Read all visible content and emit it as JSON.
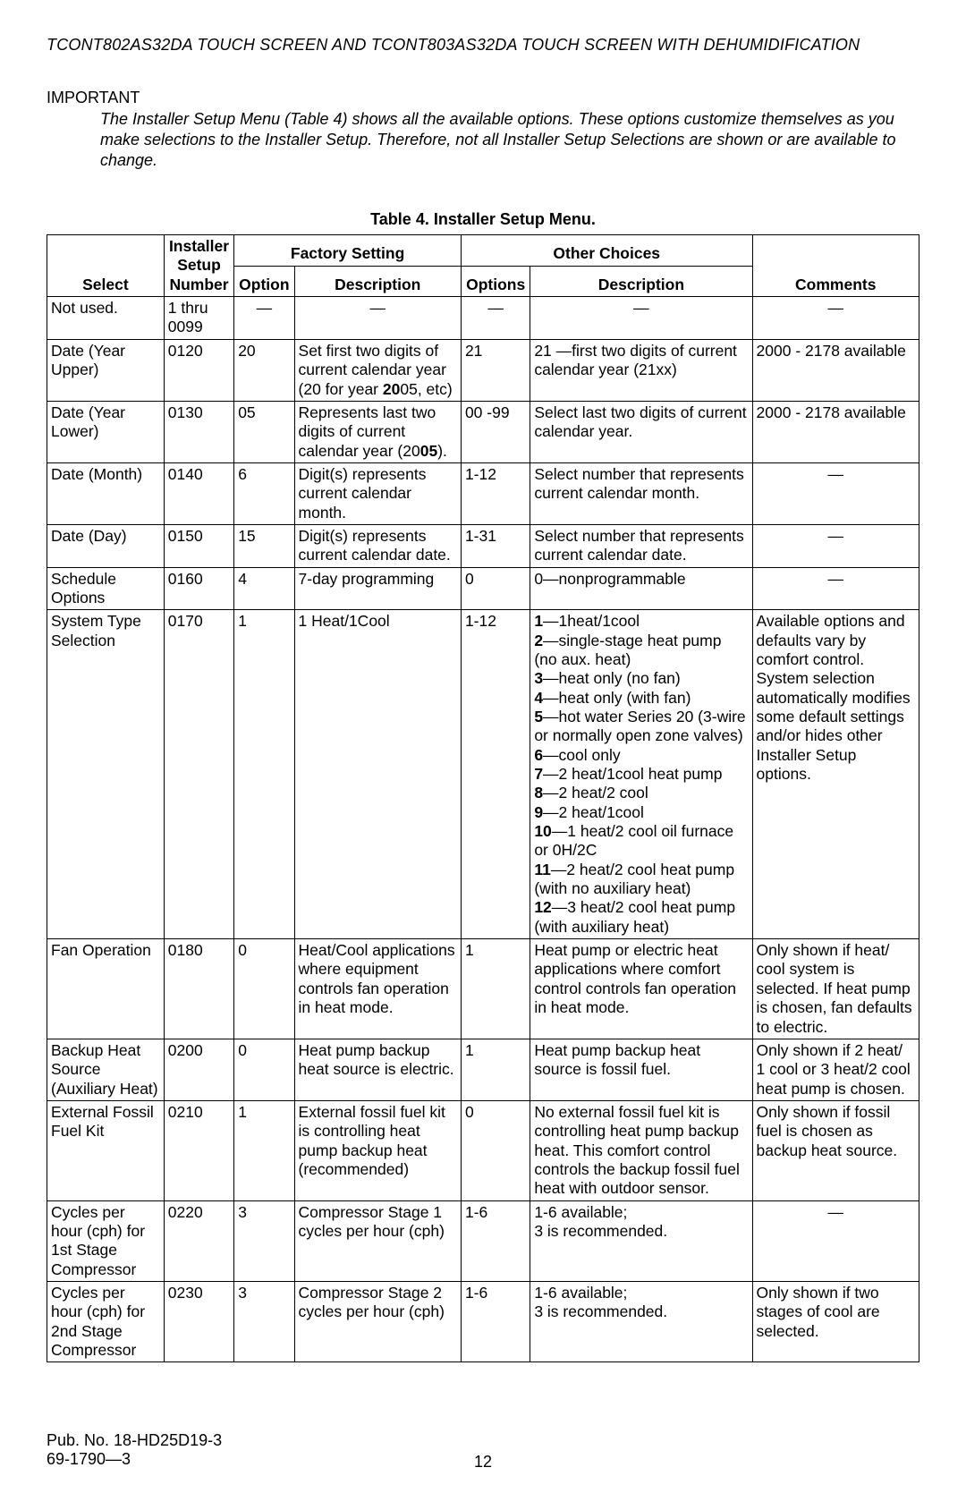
{
  "header": "TCONT802AS32DA TOUCH SCREEN AND TCONT803AS32DA TOUCH SCREEN WITH DEHUMIDIFICATION",
  "importantLabel": "IMPORTANT",
  "importantText": "The Installer Setup Menu (Table 4) shows all the available options. These options customize themselves as you make selections to the Installer Setup. Therefore, not all Installer Setup Selections are shown or are available to change.",
  "tableCaption": "Table 4. Installer Setup Menu.",
  "headers": {
    "factorySetting": "Factory Setting",
    "otherChoices": "Other Choices",
    "select": "Select",
    "installerSetupNumber": "Installer Setup Number",
    "option": "Option",
    "description": "Description",
    "options": "Options",
    "comments": "Comments"
  },
  "rows": [
    {
      "select": "Not used.",
      "number": "1 thru 0099",
      "option": "—",
      "fdesc": "—",
      "options": "—",
      "odesc": "—",
      "comments": "—"
    },
    {
      "select": "Date (Year Upper)",
      "number": "0120",
      "option": "20",
      "fdesc": "Set first two digits of current calendar year (20 for year <b>20</b>05, etc)",
      "options": "21",
      "odesc": "21 —first two digits of current calendar year (21xx)",
      "comments": "2000 - 2178 available"
    },
    {
      "select": "Date (Year Lower)",
      "number": "0130",
      "option": "05",
      "fdesc": "Represents last two digits of current calendar year (20<b>05</b>).",
      "options": "00 -99",
      "odesc": "Select last two digits of current calendar year.",
      "comments": "2000 - 2178 available"
    },
    {
      "select": "Date (Month)",
      "number": "0140",
      "option": "6",
      "fdesc": "Digit(s) represents current calendar month.",
      "options": "1-12",
      "odesc": "Select number that represents current calendar month.",
      "comments": "—"
    },
    {
      "select": "Date (Day)",
      "number": "0150",
      "option": "15",
      "fdesc": "Digit(s) represents current calendar date.",
      "options": "1-31",
      "odesc": "Select number that represents current calendar date.",
      "comments": "—"
    },
    {
      "select": "Schedule Options",
      "number": "0160",
      "option": "4",
      "fdesc": "7-day programming",
      "options": "0",
      "odesc": "0—nonprogrammable",
      "comments": "—"
    },
    {
      "select": "System Type Selection",
      "number": "0170",
      "option": "1",
      "fdesc": "1 Heat/1Cool",
      "options": "1-12",
      "odesc": "<b>1</b>—1heat/1cool<br><b>2</b>—single-stage heat pump (no aux. heat)<br><b>3</b>—heat only (no fan)<br><b>4</b>—heat only (with fan)<br><b>5</b>—hot water Series 20 (3-wire or normally open zone valves)<br><b>6</b>—cool only<br><b>7</b>—2 heat/1cool heat pump<br><b>8</b>—2 heat/2 cool<br><b>9</b>—2 heat/1cool<br><b>10</b>—1 heat/2 cool oil furnace or 0H/2C<br><b>11</b>—2 heat/2 cool heat pump (with no auxiliary heat)<br><b>12</b>—3 heat/2 cool heat pump (with auxiliary heat)",
      "comments": "Available options and defaults vary by comfort control. System selection automatically modifies some default settings and/or hides other Installer Setup options."
    },
    {
      "select": "Fan Operation",
      "number": "0180",
      "option": "0",
      "fdesc": "Heat/Cool applications where equipment controls fan operation in heat mode.",
      "options": "1",
      "odesc": "Heat pump or electric heat applications where comfort control controls fan operation in heat mode.",
      "comments": "Only shown if heat/ cool system is selected. If heat pump is chosen, fan defaults to electric."
    },
    {
      "select": "Backup Heat Source (Auxiliary Heat)",
      "number": "0200",
      "option": "0",
      "fdesc": "Heat pump backup heat source is electric.",
      "options": "1",
      "odesc": "Heat pump backup heat source is fossil fuel.",
      "comments": "Only shown if 2 heat/ 1 cool or 3 heat/2 cool heat pump is chosen."
    },
    {
      "select": "External Fossil Fuel Kit",
      "number": "0210",
      "option": "1",
      "fdesc": "External fossil fuel kit is controlling heat pump backup heat (recommended)",
      "options": "0",
      "odesc": "No external fossil fuel kit is controlling heat pump backup heat. This comfort control controls the backup fossil fuel heat with outdoor sensor.",
      "comments": "Only shown if fossil fuel is chosen as backup heat source."
    },
    {
      "select": "Cycles per hour (cph) for 1st Stage Compressor",
      "number": "0220",
      "option": "3",
      "fdesc": "Compressor Stage 1 cycles per hour (cph)",
      "options": "1-6",
      "odesc": "1-6 available;<br>3 is recommended.",
      "comments": "—"
    },
    {
      "select": "Cycles per hour (cph) for 2nd Stage Compressor",
      "number": "0230",
      "option": "3",
      "fdesc": "Compressor Stage 2 cycles per hour (cph)",
      "options": "1-6",
      "odesc": "1-6 available;<br>3 is recommended.",
      "comments": "Only shown if two stages of cool are selected."
    }
  ],
  "footer": {
    "pub": "Pub. No. 18-HD25D19-3",
    "doc": "69-1790—3",
    "page": "12"
  }
}
